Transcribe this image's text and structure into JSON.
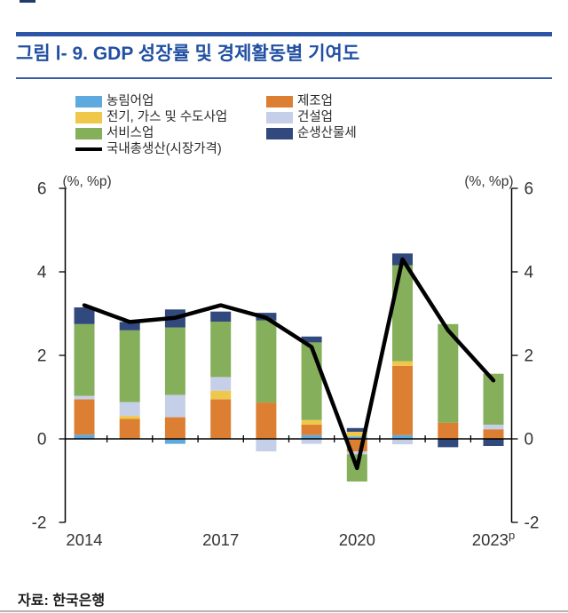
{
  "header": {
    "title": "그림 Ⅰ- 9. GDP 성장률 및 경제활동별 기여도"
  },
  "legend": {
    "col1": [
      {
        "label": "농림어업",
        "color": "#5ea9dd",
        "type": "box"
      },
      {
        "label": "전기, 가스 및 수도사업",
        "color": "#efc84a",
        "type": "box"
      },
      {
        "label": "서비스업",
        "color": "#85af5b",
        "type": "box"
      },
      {
        "label": "국내총생산(시장가격)",
        "color": "#000000",
        "type": "line"
      }
    ],
    "col2": [
      {
        "label": "제조업",
        "color": "#dc7f33",
        "type": "box"
      },
      {
        "label": "건설업",
        "color": "#c5d0e8",
        "type": "box"
      },
      {
        "label": "순생산물세",
        "color": "#32497e",
        "type": "box"
      }
    ]
  },
  "chart_data": {
    "type": "bar",
    "subtype": "stacked-bar-with-line",
    "title": "GDP 성장률 및 경제활동별 기여도",
    "unit_label_left": "(%, %p)",
    "unit_label_right": "(%, %p)",
    "ylim": [
      -2,
      6
    ],
    "yticks": [
      6,
      4,
      2,
      0,
      -2
    ],
    "grid": "off",
    "legend_position": "top",
    "years": [
      2014,
      2015,
      2016,
      2017,
      2018,
      2019,
      2020,
      2021,
      2022,
      2023
    ],
    "x_tick_labels": [
      {
        "text": "2014",
        "index": 0
      },
      {
        "text": "2017",
        "index": 3
      },
      {
        "text": "2020",
        "index": 6
      },
      {
        "text": "2023",
        "sup": "p",
        "index": 9
      }
    ],
    "series": [
      {
        "name": "농림어업",
        "color": "#5ea9dd",
        "values": [
          0.1,
          0.0,
          -0.12,
          0.0,
          0.0,
          0.09,
          0.06,
          0.09,
          0.0,
          0.0
        ]
      },
      {
        "name": "제조업",
        "color": "#dc7f33",
        "values": [
          0.85,
          0.48,
          0.52,
          0.95,
          0.87,
          0.25,
          -0.3,
          1.66,
          0.39,
          0.23
        ]
      },
      {
        "name": "전기, 가스 및 수도사업",
        "color": "#efc84a",
        "values": [
          0.0,
          0.07,
          0.0,
          0.2,
          0.0,
          0.11,
          0.11,
          0.11,
          0.0,
          0.0
        ]
      },
      {
        "name": "건설업",
        "color": "#c5d0e8",
        "values": [
          0.08,
          0.33,
          0.53,
          0.33,
          -0.3,
          -0.12,
          -0.07,
          -0.13,
          0.0,
          0.11
        ]
      },
      {
        "name": "서비스업",
        "color": "#85af5b",
        "values": [
          1.72,
          1.72,
          1.62,
          1.33,
          1.97,
          1.86,
          -0.65,
          2.3,
          2.36,
          1.22
        ]
      },
      {
        "name": "순생산물세",
        "color": "#32497e",
        "values": [
          0.4,
          0.2,
          0.43,
          0.24,
          0.18,
          0.14,
          0.09,
          0.28,
          -0.2,
          -0.17
        ]
      }
    ],
    "line": {
      "name": "국내총생산(시장가격)",
      "color": "#000000",
      "values": [
        3.2,
        2.8,
        2.9,
        3.2,
        2.9,
        2.2,
        -0.7,
        4.3,
        2.6,
        1.4
      ]
    }
  },
  "source": {
    "label": "자료: 한국은행"
  }
}
